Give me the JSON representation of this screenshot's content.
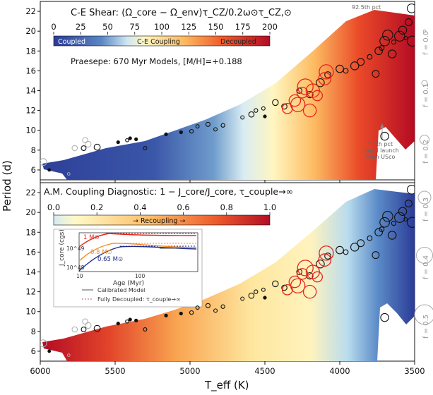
{
  "chart_data": {
    "type": "scatter",
    "shared": {
      "xlabel": "T_eff (K)",
      "ylabel": "Period (d)",
      "x_ticks": [
        6000,
        5500,
        5000,
        4500,
        4000,
        3500
      ],
      "y_ticks": [
        6,
        8,
        10,
        12,
        14,
        16,
        18,
        20,
        22
      ],
      "xlim": [
        6000,
        3500
      ],
      "ylim": [
        5,
        23
      ],
      "legend_sizes": [
        "f = 0.0",
        "f = 0.1",
        "f = 0.2",
        "f = 0.3",
        "f = 0.4",
        "f = 0.5"
      ]
    },
    "panels": [
      {
        "name": "top",
        "colorbar_title": "C-E Shear: (Ω_core − Ω_env)τ_CZ/0.2ω⊙τ_CZ,⊙",
        "colorbar_ticks": [
          "0",
          "25",
          "50",
          "75",
          "100",
          "125",
          "150",
          "175",
          "200"
        ],
        "colorbar_labels": [
          "Coupled",
          "C-E Coupling",
          "Decoupled"
        ],
        "subtitle": "Praesepe: 670 Myr Models, [M/H]=+0.188",
        "annotation_top": "92.5th pct",
        "annotation_bottom": [
          "7.5th pct",
          "rapid launch",
          "from USco"
        ]
      },
      {
        "name": "bottom",
        "colorbar_title": "A.M. Coupling Diagnostic: 1 − J_core/J_core, τ_couple→∞",
        "colorbar_ticks": [
          "0.0",
          "0.2",
          "0.4",
          "0.6",
          "0.8",
          "1.0"
        ],
        "colorbar_label": "→ Recoupling →",
        "inset": {
          "ylabel": "J_core (cgs)",
          "xlabel": "Age (Myr)",
          "y_ticks": [
            "10^49",
            "10^48"
          ],
          "x_ticks": [
            "10",
            "100"
          ],
          "series": [
            {
              "name": "1 M⊙",
              "color": "#e8241c"
            },
            {
              "name": "0.8 M⊙",
              "color": "#f28b22"
            },
            {
              "name": "0.65 M⊙",
              "color": "#1a2a8c"
            }
          ],
          "legend": [
            "Calibrated Model",
            "Fully Decoupled: τ_couple→∞"
          ]
        }
      }
    ],
    "stars_black": [
      {
        "teff": 5940,
        "p": 6.0,
        "s": 0.02
      },
      {
        "teff": 5710,
        "p": 8.2,
        "s": 0.1
      },
      {
        "teff": 5620,
        "p": 8.3,
        "s": 0.15
      },
      {
        "teff": 5480,
        "p": 8.8,
        "s": 0.03
      },
      {
        "teff": 5420,
        "p": 9.0,
        "s": 0.04
      },
      {
        "teff": 5400,
        "p": 9.2,
        "s": 0.03
      },
      {
        "teff": 5360,
        "p": 9.1,
        "s": 0.03
      },
      {
        "teff": 5300,
        "p": 8.2,
        "s": 0.05
      },
      {
        "teff": 5160,
        "p": 9.6,
        "s": 0.03
      },
      {
        "teff": 5060,
        "p": 9.8,
        "s": 0.03
      },
      {
        "teff": 4990,
        "p": 9.9,
        "s": 0.06
      },
      {
        "teff": 4950,
        "p": 10.4,
        "s": 0.05
      },
      {
        "teff": 4880,
        "p": 10.6,
        "s": 0.08
      },
      {
        "teff": 4830,
        "p": 10.1,
        "s": 0.05
      },
      {
        "teff": 4780,
        "p": 10.5,
        "s": 0.06
      },
      {
        "teff": 4650,
        "p": 11.3,
        "s": 0.05
      },
      {
        "teff": 4590,
        "p": 11.6,
        "s": 0.12
      },
      {
        "teff": 4560,
        "p": 12.0,
        "s": 0.06
      },
      {
        "teff": 4510,
        "p": 12.2,
        "s": 0.05
      },
      {
        "teff": 4500,
        "p": 11.4,
        "s": 0.03
      },
      {
        "teff": 4430,
        "p": 12.8,
        "s": 0.14
      },
      {
        "teff": 4370,
        "p": 12.4,
        "s": 0.12
      },
      {
        "teff": 4270,
        "p": 14.0,
        "s": 0.12
      },
      {
        "teff": 4200,
        "p": 13.6,
        "s": 0.16
      },
      {
        "teff": 4130,
        "p": 14.8,
        "s": 0.22
      },
      {
        "teff": 4080,
        "p": 15.6,
        "s": 0.15
      },
      {
        "teff": 4000,
        "p": 16.2,
        "s": 0.2
      },
      {
        "teff": 3960,
        "p": 16.0,
        "s": 0.1
      },
      {
        "teff": 3900,
        "p": 16.5,
        "s": 0.22
      },
      {
        "teff": 3860,
        "p": 16.9,
        "s": 0.18
      },
      {
        "teff": 3800,
        "p": 17.4,
        "s": 0.1
      },
      {
        "teff": 3760,
        "p": 15.7,
        "s": 0.18
      },
      {
        "teff": 3740,
        "p": 18.0,
        "s": 0.2
      },
      {
        "teff": 3720,
        "p": 18.3,
        "s": 0.1
      },
      {
        "teff": 3700,
        "p": 19.0,
        "s": 0.28
      },
      {
        "teff": 3680,
        "p": 19.6,
        "s": 0.3
      },
      {
        "teff": 3650,
        "p": 17.7,
        "s": 0.22
      },
      {
        "teff": 3640,
        "p": 18.9,
        "s": 0.08
      },
      {
        "teff": 3600,
        "p": 19.5,
        "s": 0.3
      },
      {
        "teff": 3580,
        "p": 20.1,
        "s": 0.22
      },
      {
        "teff": 3560,
        "p": 19.3,
        "s": 0.05
      },
      {
        "teff": 3540,
        "p": 20.9,
        "s": 0.18
      },
      {
        "teff": 3520,
        "p": 22.3,
        "s": 0.25
      },
      {
        "teff": 3515,
        "p": 19.0,
        "s": 0.3
      },
      {
        "teff": 3700,
        "p": 9.4,
        "s": 0.22
      }
    ],
    "stars_red": [
      {
        "teff": 4350,
        "p": 12.2,
        "s": 0.3
      },
      {
        "teff": 4300,
        "p": 13.0,
        "s": 0.35
      },
      {
        "teff": 4280,
        "p": 12.6,
        "s": 0.45
      },
      {
        "teff": 4250,
        "p": 13.8,
        "s": 0.32
      },
      {
        "teff": 4230,
        "p": 14.4,
        "s": 0.5
      },
      {
        "teff": 4200,
        "p": 12.0,
        "s": 0.4
      },
      {
        "teff": 4180,
        "p": 14.0,
        "s": 0.42
      },
      {
        "teff": 4150,
        "p": 13.5,
        "s": 0.3
      },
      {
        "teff": 4100,
        "p": 15.2,
        "s": 0.38
      },
      {
        "teff": 4090,
        "p": 15.9,
        "s": 0.45
      }
    ],
    "stars_grey": [
      {
        "teff": 5980,
        "p": 6.8,
        "s": 0.18
      },
      {
        "teff": 5770,
        "p": 8.2,
        "s": 0.12
      },
      {
        "teff": 5680,
        "p": 8.6,
        "s": 0.14
      },
      {
        "teff": 5700,
        "p": 9.0,
        "s": 0.12
      },
      {
        "teff": 5810,
        "p": 5.6,
        "s": 0.02
      }
    ]
  }
}
